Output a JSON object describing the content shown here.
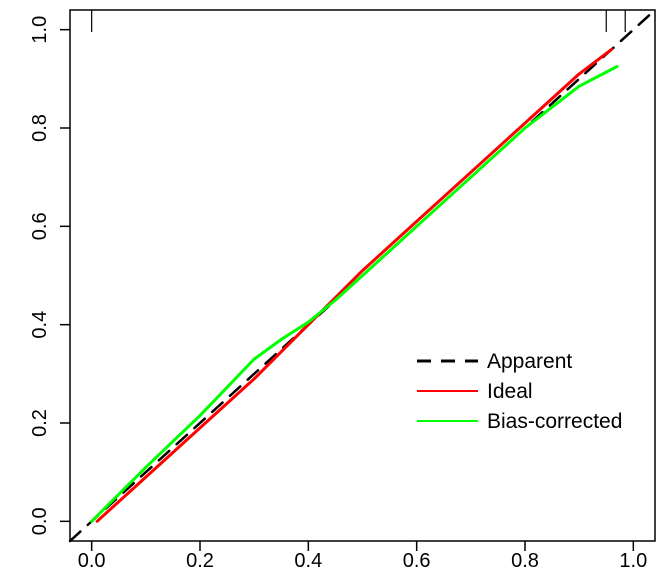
{
  "chart_data": {
    "type": "line",
    "title": "",
    "xlabel": "",
    "ylabel": "",
    "xlim": [
      -0.04,
      1.04
    ],
    "ylim": [
      -0.04,
      1.04
    ],
    "x_ticks": [
      0.0,
      0.2,
      0.4,
      0.6,
      0.8,
      1.0
    ],
    "x_tick_labels": [
      "0.0",
      "0.2",
      "0.4",
      "0.6",
      "0.8",
      "1.0"
    ],
    "y_ticks": [
      0.0,
      0.2,
      0.4,
      0.6,
      0.8,
      1.0
    ],
    "y_tick_labels": [
      "0.0",
      "0.2",
      "0.4",
      "0.6",
      "0.8",
      "1.0"
    ],
    "grid": false,
    "legend_position": "bottom-right",
    "series": [
      {
        "name": "Apparent",
        "color": "#000000",
        "style": "dashed",
        "x": [
          -0.04,
          1.04
        ],
        "y": [
          -0.04,
          1.04
        ]
      },
      {
        "name": "Ideal",
        "color": "#ff0000",
        "style": "solid",
        "x": [
          0.01,
          0.1,
          0.2,
          0.3,
          0.35,
          0.4,
          0.5,
          0.6,
          0.7,
          0.8,
          0.9,
          0.96
        ],
        "y": [
          0.0,
          0.09,
          0.19,
          0.29,
          0.345,
          0.4,
          0.51,
          0.61,
          0.71,
          0.81,
          0.91,
          0.96
        ]
      },
      {
        "name": "Bias-corrected",
        "color": "#00ff00",
        "style": "solid",
        "x": [
          0.0,
          0.1,
          0.2,
          0.3,
          0.35,
          0.4,
          0.45,
          0.5,
          0.6,
          0.7,
          0.8,
          0.9,
          0.97
        ],
        "y": [
          0.0,
          0.11,
          0.215,
          0.33,
          0.37,
          0.405,
          0.45,
          0.5,
          0.6,
          0.7,
          0.8,
          0.885,
          0.925
        ]
      }
    ],
    "legend": {
      "entries": [
        "Apparent",
        "Ideal",
        "Bias-corrected"
      ]
    }
  }
}
